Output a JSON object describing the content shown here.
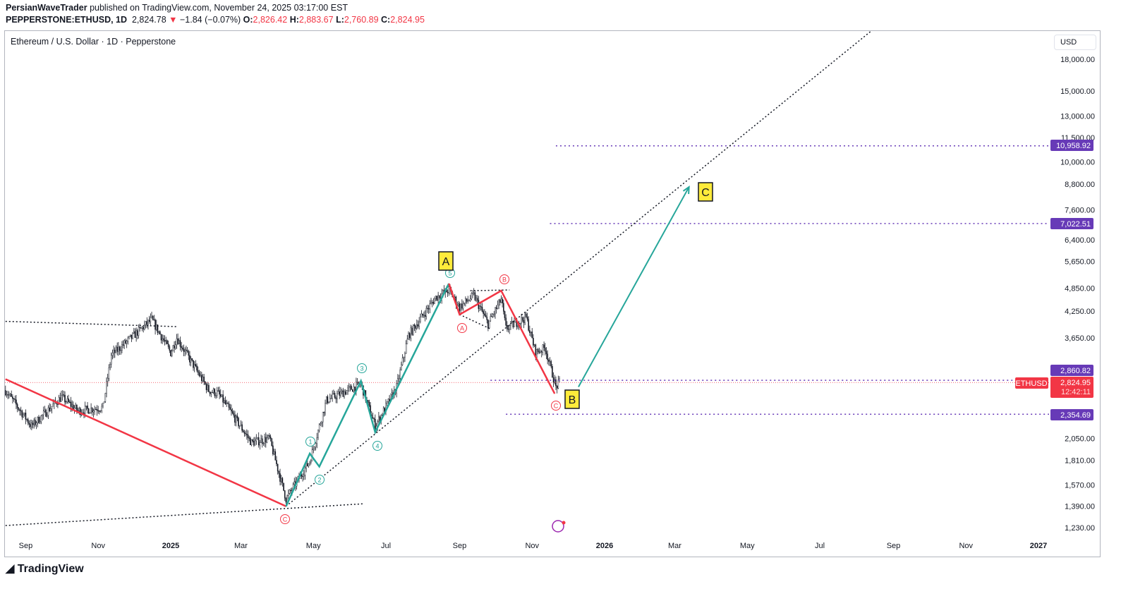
{
  "header": {
    "author": "PersianWaveTrader",
    "published": "published on TradingView.com, November 24, 2025 03:17:00 EST",
    "symbol": "PEPPERSTONE:ETHUSD, 1D",
    "last": "2,824.78",
    "change": "−1.84 (−0.07%)",
    "o_label": "O:",
    "o": "2,826.42",
    "h_label": "H:",
    "h": "2,883.67",
    "l_label": "L:",
    "l": "2,760.89",
    "c_label": "C:",
    "c": "2,824.95"
  },
  "chart_title": "Ethereum / U.S. Dollar · 1D · Pepperstone",
  "currency": "USD",
  "logo": "TradingView",
  "chart_data": {
    "type": "candlestick",
    "scale": "log",
    "ylim": [
      1150,
      20000
    ],
    "y_ticks": [
      18000,
      15000,
      13000,
      11500,
      10000,
      8800,
      7600,
      6400,
      5650,
      4850,
      4250,
      3650,
      2050,
      1810,
      1570,
      1390,
      1230
    ],
    "y_tick_labels": [
      "18,000.00",
      "15,000.00",
      "13,000.00",
      "11,500.00",
      "10,000.00",
      "8,800.00",
      "7,600.00",
      "6,400.00",
      "5,650.00",
      "4,850.00",
      "4,250.00",
      "3,650.00",
      "2,050.00",
      "1,810.00",
      "1,570.00",
      "1,390.00",
      "1,230.00"
    ],
    "x_ticks": [
      {
        "date": "2024-09-01",
        "label": "Sep"
      },
      {
        "date": "2024-11-01",
        "label": "Nov"
      },
      {
        "date": "2025-01-01",
        "label": "2025"
      },
      {
        "date": "2025-03-01",
        "label": "Mar"
      },
      {
        "date": "2025-05-01",
        "label": "May"
      },
      {
        "date": "2025-07-01",
        "label": "Jul"
      },
      {
        "date": "2025-09-01",
        "label": "Sep"
      },
      {
        "date": "2025-11-01",
        "label": "Nov"
      },
      {
        "date": "2026-01-01",
        "label": "2026"
      },
      {
        "date": "2026-03-01",
        "label": "Mar"
      },
      {
        "date": "2026-05-01",
        "label": "May"
      },
      {
        "date": "2026-07-01",
        "label": "Jul"
      },
      {
        "date": "2026-09-01",
        "label": "Sep"
      },
      {
        "date": "2026-11-01",
        "label": "Nov"
      },
      {
        "date": "2027-01-01",
        "label": "2027"
      }
    ],
    "price_path": [
      [
        "2024-08-15",
        2700
      ],
      [
        "2024-09-06",
        2200
      ],
      [
        "2024-10-01",
        2600
      ],
      [
        "2024-10-15",
        2400
      ],
      [
        "2024-11-05",
        2450
      ],
      [
        "2024-11-12",
        3300
      ],
      [
        "2024-12-16",
        4050
      ],
      [
        "2025-01-01",
        3350
      ],
      [
        "2025-01-06",
        3650
      ],
      [
        "2025-02-02",
        2700
      ],
      [
        "2025-02-10",
        2650
      ],
      [
        "2025-03-10",
        2000
      ],
      [
        "2025-03-25",
        2050
      ],
      [
        "2025-04-08",
        1450
      ],
      [
        "2025-04-28",
        1800
      ],
      [
        "2025-05-12",
        2550
      ],
      [
        "2025-06-10",
        2800
      ],
      [
        "2025-06-22",
        2200
      ],
      [
        "2025-07-10",
        2750
      ],
      [
        "2025-07-20",
        3700
      ],
      [
        "2025-08-12",
        4600
      ],
      [
        "2025-08-23",
        4800
      ],
      [
        "2025-09-01",
        4350
      ],
      [
        "2025-09-13",
        4650
      ],
      [
        "2025-09-25",
        3950
      ],
      [
        "2025-10-06",
        4550
      ],
      [
        "2025-10-10",
        3850
      ],
      [
        "2025-10-27",
        4100
      ],
      [
        "2025-11-04",
        3350
      ],
      [
        "2025-11-12",
        3450
      ],
      [
        "2025-11-21",
        2750
      ],
      [
        "2025-11-24",
        2825
      ]
    ],
    "levels": [
      {
        "price": 10958.92,
        "label": "10,958.92",
        "from": "2025-11-21"
      },
      {
        "price": 7022.51,
        "label": "7,022.51",
        "from": "2025-11-16"
      },
      {
        "price": 2860.82,
        "label": "2,860.82",
        "from": "2025-09-27"
      },
      {
        "price": 2354.69,
        "label": "2,354.69",
        "from": "2025-10-10"
      }
    ],
    "current": {
      "symbol": "ETHUSD",
      "price": 2824.95,
      "label": "2,824.95",
      "countdown": "12:42:11"
    },
    "impulse_wave": [
      [
        "2025-04-08",
        1390
      ],
      [
        "2025-04-28",
        1880
      ],
      [
        "2025-05-06",
        1745
      ],
      [
        "2025-06-10",
        2850
      ],
      [
        "2025-06-22",
        2125
      ],
      [
        "2025-08-23",
        4980
      ]
    ],
    "impulse_labels": [
      "1",
      "2",
      "3",
      "4",
      "5"
    ],
    "correction_wave": [
      [
        "2025-08-23",
        4980
      ],
      [
        "2025-09-01",
        4170
      ],
      [
        "2025-10-06",
        4780
      ],
      [
        "2025-11-20",
        2650
      ]
    ],
    "correction_labels": [
      "A",
      "B",
      "C"
    ],
    "prior_decline": [
      [
        "2024-08-15",
        2880
      ],
      [
        "2025-04-08",
        1390
      ]
    ],
    "prior_label": "C",
    "projection": [
      [
        "2025-12-10",
        2755
      ],
      [
        "2026-03-13",
        8660
      ]
    ],
    "degree_labels": [
      "A",
      "B",
      "C"
    ],
    "trendlines": [
      [
        [
          "2024-08-15",
          4010
        ],
        [
          "2025-01-07",
          3890
        ]
      ],
      [
        [
          "2024-08-15",
          1245
        ],
        [
          "2025-06-12",
          1410
        ]
      ],
      [
        [
          "2025-04-08",
          1390
        ],
        [
          "2026-08-14",
          21250
        ]
      ],
      [
        [
          "2025-09-10",
          4780
        ],
        [
          "2025-10-13",
          4800
        ]
      ],
      [
        [
          "2025-09-01",
          4170
        ],
        [
          "2025-09-27",
          3840
        ]
      ]
    ],
    "colors": {
      "up": "#089981",
      "impulse": "#26a69a",
      "correction": "#f23645",
      "level": "#673ab7",
      "candle": "#131722",
      "callout": "#ffeb3b"
    }
  }
}
